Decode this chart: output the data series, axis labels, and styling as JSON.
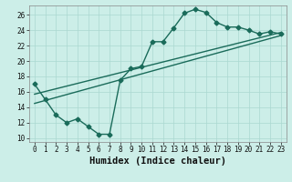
{
  "title": "",
  "xlabel": "Humidex (Indice chaleur)",
  "bg_color": "#cceee8",
  "line_color": "#1a6b5a",
  "xlim": [
    -0.5,
    23.5
  ],
  "ylim": [
    9.5,
    27.2
  ],
  "xticks": [
    0,
    1,
    2,
    3,
    4,
    5,
    6,
    7,
    8,
    9,
    10,
    11,
    12,
    13,
    14,
    15,
    16,
    17,
    18,
    19,
    20,
    21,
    22,
    23
  ],
  "yticks": [
    10,
    12,
    14,
    16,
    18,
    20,
    22,
    24,
    26
  ],
  "series1_x": [
    0,
    1,
    2,
    3,
    4,
    5,
    6,
    7,
    8,
    9,
    10,
    11,
    12,
    13,
    14,
    15,
    16,
    17,
    18,
    19,
    20,
    21,
    22,
    23
  ],
  "series1_y": [
    17.0,
    15.0,
    13.0,
    12.0,
    12.5,
    11.5,
    10.5,
    10.5,
    17.5,
    19.0,
    19.3,
    22.5,
    22.5,
    24.3,
    26.2,
    26.7,
    26.3,
    25.0,
    24.4,
    24.4,
    24.0,
    23.5,
    23.8,
    23.5
  ],
  "series2_x": [
    0,
    23
  ],
  "series2_y": [
    14.5,
    23.3
  ],
  "series3_x": [
    0,
    23
  ],
  "series3_y": [
    15.7,
    23.7
  ],
  "grid_color": "#aad8d0",
  "marker": "D",
  "markersize": 2.5,
  "linewidth": 1.0,
  "tick_fontsize": 5.5,
  "xlabel_fontsize": 7.5
}
